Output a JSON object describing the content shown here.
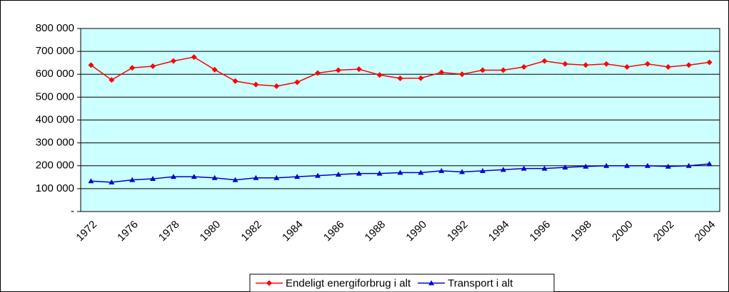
{
  "chart_data": {
    "type": "line",
    "categories": [
      "1972",
      null,
      "1976",
      null,
      "1978",
      null,
      "1980",
      null,
      "1982",
      null,
      "1984",
      null,
      "1986",
      null,
      "1988",
      null,
      "1990",
      null,
      "1992",
      null,
      "1994",
      null,
      "1996",
      null,
      "1998",
      null,
      "2000",
      null,
      "2002",
      null,
      "2004"
    ],
    "series": [
      {
        "name": "Endeligt energiforbrug i alt",
        "color": "#ff0000",
        "marker": "diamond",
        "values": [
          640000,
          575000,
          628000,
          635000,
          658000,
          675000,
          620000,
          570000,
          555000,
          548000,
          565000,
          605000,
          618000,
          622000,
          597000,
          582000,
          583000,
          608000,
          600000,
          618000,
          618000,
          632000,
          658000,
          645000,
          640000,
          645000,
          632000,
          645000,
          632000,
          640000,
          652000
        ]
      },
      {
        "name": "Transport i alt",
        "color": "#0000cc",
        "marker": "triangle",
        "values": [
          133000,
          128000,
          138000,
          143000,
          152000,
          152000,
          147000,
          138000,
          147000,
          147000,
          152000,
          157000,
          162000,
          166000,
          166000,
          170000,
          170000,
          178000,
          173000,
          178000,
          183000,
          188000,
          188000,
          193000,
          197000,
          200000,
          200000,
          200000,
          197000,
          200000,
          208000
        ]
      }
    ],
    "ylim": [
      0,
      800000
    ],
    "yticks": [
      {
        "value": 0,
        "label": "-"
      },
      {
        "value": 100000,
        "label": "100 000"
      },
      {
        "value": 200000,
        "label": "200 000"
      },
      {
        "value": 300000,
        "label": "300 000"
      },
      {
        "value": 400000,
        "label": "400 000"
      },
      {
        "value": 500000,
        "label": "500 000"
      },
      {
        "value": 600000,
        "label": "600 000"
      },
      {
        "value": 700000,
        "label": "700 000"
      },
      {
        "value": 800000,
        "label": "800 000"
      }
    ],
    "grid": true,
    "plot_background": "#ccffff",
    "legend": "bottom"
  }
}
